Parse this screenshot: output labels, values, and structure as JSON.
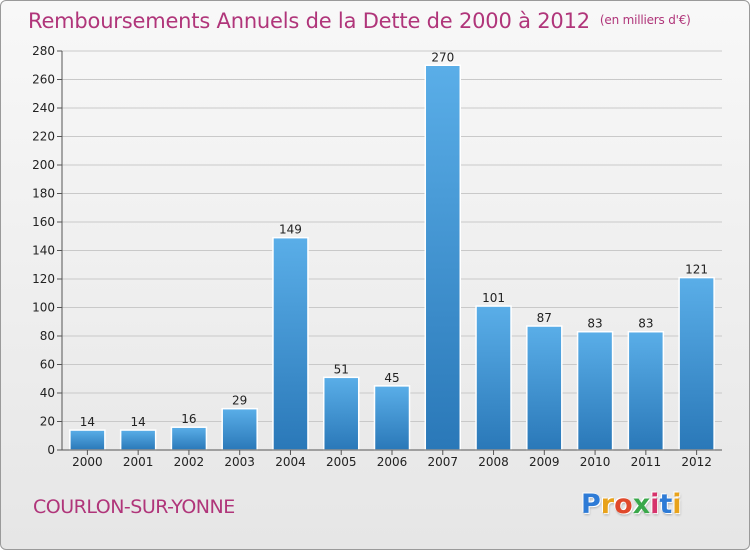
{
  "title": "Remboursements Annuels de la Dette de 2000 à 2012",
  "unit_note": "(en milliers d'€)",
  "commune": "COURLON-SUR-YONNE",
  "logo": {
    "letters": [
      "P",
      "r",
      "o",
      "x",
      "i",
      "t",
      "i"
    ],
    "colors": [
      "#2e7bd6",
      "#e8a21a",
      "#e0492b",
      "#3aa84a",
      "#d6336c",
      "#2e7bd6",
      "#e8a21a"
    ]
  },
  "colors": {
    "title": "#b0357a",
    "bar_top": "#5aaee8",
    "bar_bottom": "#2a78b8"
  },
  "chart_data": {
    "type": "bar",
    "categories": [
      "2000",
      "2001",
      "2002",
      "2003",
      "2004",
      "2005",
      "2006",
      "2007",
      "2008",
      "2009",
      "2010",
      "2011",
      "2012"
    ],
    "values": [
      14,
      14,
      16,
      29,
      149,
      51,
      45,
      270,
      101,
      87,
      83,
      83,
      121
    ],
    "data_labels": [
      "14",
      "14",
      "16",
      "29",
      "149",
      "51",
      "45",
      "270",
      "101",
      "87",
      "83",
      "83",
      "121"
    ],
    "ylim": [
      0,
      280
    ],
    "yticks": [
      "0",
      "20",
      "40",
      "60",
      "80",
      "100",
      "120",
      "140",
      "160",
      "180",
      "200",
      "220",
      "240",
      "260",
      "280"
    ],
    "grid": true
  }
}
